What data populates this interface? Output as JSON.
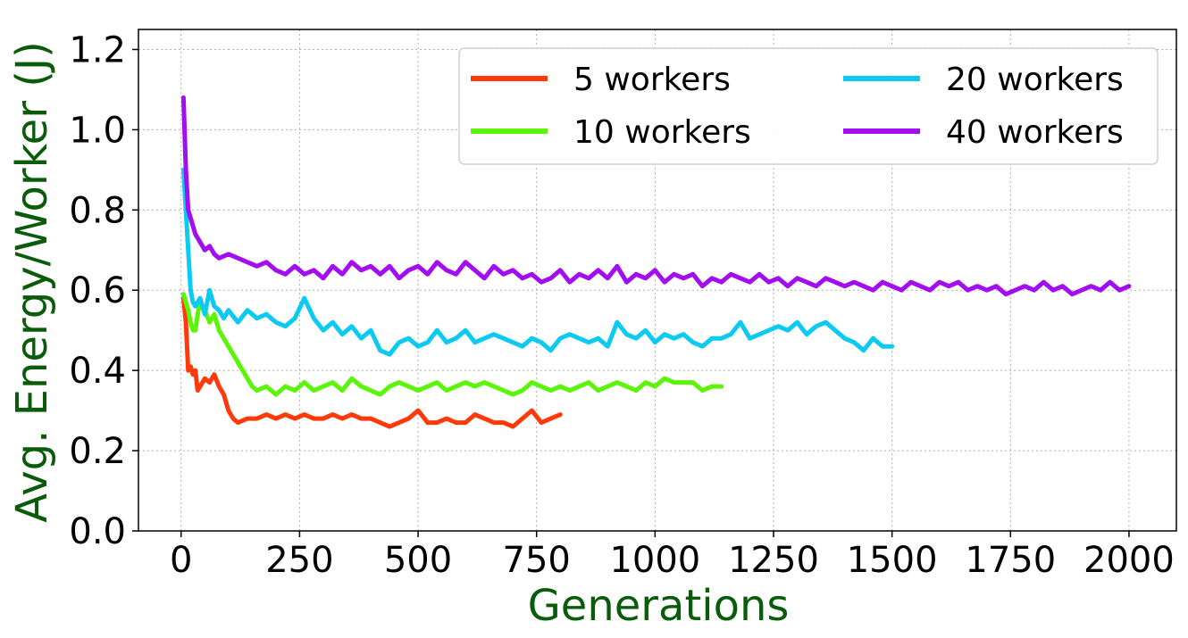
{
  "chart_data": {
    "type": "line",
    "title": "",
    "xlabel": "Generations",
    "ylabel": "Avg. Energy/Worker (J)",
    "xlim": [
      -90,
      2100
    ],
    "ylim": [
      0.0,
      1.25
    ],
    "xticks": [
      0,
      250,
      500,
      750,
      1000,
      1250,
      1500,
      1750,
      2000
    ],
    "yticks": [
      0.0,
      0.2,
      0.4,
      0.6,
      0.8,
      1.0,
      1.2
    ],
    "grid": true,
    "legend": "top-right",
    "label_color": "#0a5c0a",
    "series": [
      {
        "name": "5 workers",
        "color": "#ff3a0a",
        "x": [
          5,
          10,
          15,
          20,
          25,
          30,
          35,
          40,
          50,
          60,
          70,
          80,
          90,
          100,
          110,
          120,
          140,
          160,
          180,
          200,
          220,
          240,
          260,
          280,
          300,
          320,
          340,
          360,
          380,
          400,
          420,
          440,
          460,
          480,
          500,
          520,
          540,
          560,
          580,
          600,
          620,
          640,
          660,
          680,
          700,
          720,
          740,
          760,
          780,
          800
        ],
        "y": [
          0.58,
          0.52,
          0.4,
          0.41,
          0.39,
          0.4,
          0.35,
          0.36,
          0.38,
          0.37,
          0.39,
          0.36,
          0.34,
          0.3,
          0.28,
          0.27,
          0.28,
          0.28,
          0.29,
          0.28,
          0.29,
          0.28,
          0.29,
          0.28,
          0.28,
          0.29,
          0.28,
          0.29,
          0.28,
          0.28,
          0.27,
          0.26,
          0.27,
          0.28,
          0.3,
          0.27,
          0.27,
          0.28,
          0.27,
          0.27,
          0.29,
          0.28,
          0.27,
          0.27,
          0.26,
          0.28,
          0.3,
          0.27,
          0.28,
          0.29
        ]
      },
      {
        "name": "10 workers",
        "color": "#5cf50a",
        "x": [
          5,
          10,
          15,
          20,
          25,
          30,
          35,
          40,
          50,
          60,
          70,
          80,
          90,
          100,
          110,
          120,
          130,
          140,
          150,
          160,
          180,
          200,
          220,
          240,
          260,
          280,
          300,
          320,
          340,
          360,
          380,
          400,
          420,
          440,
          460,
          480,
          500,
          520,
          540,
          560,
          580,
          600,
          620,
          640,
          660,
          680,
          700,
          720,
          740,
          760,
          780,
          800,
          820,
          840,
          860,
          880,
          900,
          920,
          940,
          960,
          980,
          1000,
          1020,
          1040,
          1060,
          1080,
          1100,
          1120,
          1140
        ],
        "y": [
          0.59,
          0.57,
          0.55,
          0.52,
          0.5,
          0.5,
          0.54,
          0.57,
          0.55,
          0.52,
          0.54,
          0.5,
          0.48,
          0.46,
          0.44,
          0.42,
          0.4,
          0.38,
          0.36,
          0.35,
          0.36,
          0.34,
          0.36,
          0.35,
          0.37,
          0.35,
          0.36,
          0.37,
          0.35,
          0.38,
          0.36,
          0.35,
          0.34,
          0.36,
          0.37,
          0.36,
          0.35,
          0.36,
          0.37,
          0.35,
          0.36,
          0.37,
          0.36,
          0.37,
          0.36,
          0.35,
          0.34,
          0.35,
          0.37,
          0.36,
          0.35,
          0.36,
          0.35,
          0.36,
          0.37,
          0.35,
          0.36,
          0.37,
          0.36,
          0.35,
          0.37,
          0.36,
          0.38,
          0.37,
          0.37,
          0.37,
          0.35,
          0.36,
          0.36
        ]
      },
      {
        "name": "20 workers",
        "color": "#0ccaf0",
        "x": [
          5,
          10,
          15,
          20,
          25,
          30,
          40,
          50,
          60,
          70,
          80,
          90,
          100,
          120,
          140,
          160,
          180,
          200,
          220,
          240,
          260,
          280,
          300,
          320,
          340,
          360,
          380,
          400,
          420,
          440,
          460,
          480,
          500,
          520,
          540,
          560,
          580,
          600,
          620,
          640,
          660,
          680,
          700,
          720,
          740,
          760,
          780,
          800,
          820,
          840,
          860,
          880,
          900,
          920,
          940,
          960,
          980,
          1000,
          1020,
          1040,
          1060,
          1080,
          1100,
          1120,
          1140,
          1160,
          1180,
          1200,
          1220,
          1240,
          1260,
          1280,
          1300,
          1320,
          1340,
          1360,
          1380,
          1400,
          1420,
          1440,
          1460,
          1480,
          1500
        ],
        "y": [
          0.9,
          0.8,
          0.7,
          0.6,
          0.57,
          0.56,
          0.58,
          0.54,
          0.6,
          0.56,
          0.55,
          0.53,
          0.55,
          0.52,
          0.55,
          0.53,
          0.54,
          0.52,
          0.51,
          0.53,
          0.58,
          0.53,
          0.5,
          0.52,
          0.49,
          0.51,
          0.48,
          0.5,
          0.45,
          0.44,
          0.47,
          0.48,
          0.46,
          0.47,
          0.5,
          0.47,
          0.48,
          0.5,
          0.47,
          0.48,
          0.49,
          0.48,
          0.47,
          0.46,
          0.48,
          0.47,
          0.45,
          0.48,
          0.49,
          0.48,
          0.47,
          0.48,
          0.46,
          0.52,
          0.49,
          0.48,
          0.5,
          0.47,
          0.49,
          0.48,
          0.49,
          0.47,
          0.46,
          0.48,
          0.48,
          0.49,
          0.52,
          0.48,
          0.49,
          0.5,
          0.51,
          0.5,
          0.52,
          0.49,
          0.51,
          0.52,
          0.5,
          0.48,
          0.47,
          0.45,
          0.48,
          0.46,
          0.46
        ]
      },
      {
        "name": "40 workers",
        "color": "#a30ef0",
        "x": [
          5,
          10,
          15,
          20,
          25,
          30,
          40,
          50,
          60,
          70,
          80,
          100,
          120,
          140,
          160,
          180,
          200,
          220,
          240,
          260,
          280,
          300,
          320,
          340,
          360,
          380,
          400,
          420,
          440,
          460,
          480,
          500,
          520,
          540,
          560,
          580,
          600,
          620,
          640,
          660,
          680,
          700,
          720,
          740,
          760,
          780,
          800,
          820,
          840,
          860,
          880,
          900,
          920,
          940,
          960,
          980,
          1000,
          1020,
          1040,
          1060,
          1080,
          1100,
          1120,
          1140,
          1160,
          1180,
          1200,
          1220,
          1240,
          1260,
          1280,
          1300,
          1320,
          1340,
          1360,
          1380,
          1400,
          1420,
          1440,
          1460,
          1480,
          1500,
          1520,
          1540,
          1560,
          1580,
          1600,
          1620,
          1640,
          1660,
          1680,
          1700,
          1720,
          1740,
          1760,
          1780,
          1800,
          1820,
          1840,
          1860,
          1880,
          1900,
          1920,
          1940,
          1960,
          1980,
          2000
        ],
        "y": [
          1.08,
          0.9,
          0.8,
          0.78,
          0.76,
          0.74,
          0.72,
          0.7,
          0.71,
          0.69,
          0.68,
          0.69,
          0.68,
          0.67,
          0.66,
          0.67,
          0.65,
          0.64,
          0.66,
          0.64,
          0.65,
          0.63,
          0.66,
          0.64,
          0.67,
          0.65,
          0.66,
          0.64,
          0.66,
          0.63,
          0.65,
          0.66,
          0.64,
          0.67,
          0.65,
          0.64,
          0.67,
          0.65,
          0.63,
          0.66,
          0.64,
          0.65,
          0.63,
          0.64,
          0.62,
          0.63,
          0.65,
          0.62,
          0.64,
          0.63,
          0.65,
          0.63,
          0.66,
          0.62,
          0.64,
          0.63,
          0.65,
          0.62,
          0.64,
          0.63,
          0.64,
          0.61,
          0.63,
          0.62,
          0.64,
          0.63,
          0.62,
          0.64,
          0.62,
          0.63,
          0.61,
          0.63,
          0.62,
          0.61,
          0.63,
          0.62,
          0.61,
          0.62,
          0.61,
          0.6,
          0.62,
          0.61,
          0.6,
          0.62,
          0.61,
          0.6,
          0.62,
          0.61,
          0.62,
          0.6,
          0.61,
          0.6,
          0.61,
          0.59,
          0.6,
          0.61,
          0.6,
          0.62,
          0.6,
          0.61,
          0.59,
          0.6,
          0.61,
          0.6,
          0.62,
          0.6,
          0.61
        ]
      }
    ]
  }
}
